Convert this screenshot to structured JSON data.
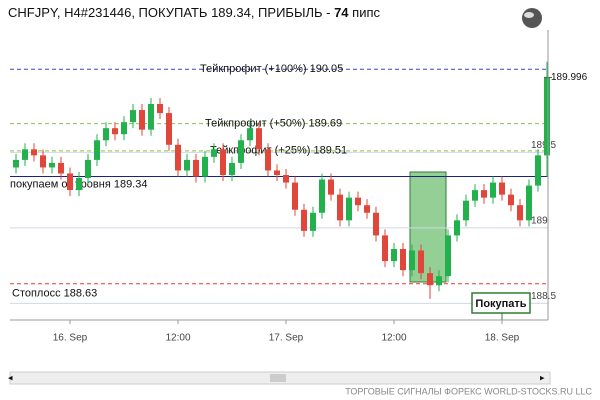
{
  "chart_data": {
    "type": "candlestick",
    "title": {
      "prefix": "CHFJPY, H4#231446, ПОКУПАТЬ 189.34, ПРИБЫЛЬ - ",
      "profit": 74,
      "unit": " пипс"
    },
    "categories": [
      null,
      null,
      null,
      null,
      null,
      null,
      "16. Sep",
      null,
      null,
      null,
      null,
      null,
      null,
      null,
      null,
      null,
      null,
      null,
      "12:00",
      null,
      null,
      null,
      null,
      null,
      null,
      null,
      null,
      null,
      null,
      null,
      "17. Sep",
      null,
      null,
      null,
      null,
      null,
      null,
      null,
      null,
      null,
      null,
      null,
      "12:00",
      null,
      null,
      null,
      null,
      null,
      null,
      null,
      null,
      null,
      null,
      null,
      "18. Sep",
      null,
      null,
      null,
      null,
      null
    ],
    "open": [
      189.4,
      189.45,
      189.52,
      189.48,
      189.4,
      189.43,
      189.36,
      189.25,
      189.33,
      189.45,
      189.58,
      189.66,
      189.62,
      189.7,
      189.78,
      189.65,
      189.82,
      189.76,
      189.55,
      189.38,
      189.45,
      189.34,
      189.47,
      189.52,
      189.35,
      189.43,
      189.58,
      189.66,
      189.52,
      189.38,
      189.35,
      189.3,
      189.12,
      188.98,
      189.1,
      189.32,
      189.22,
      189.05,
      189.2,
      189.15,
      189.1,
      188.95,
      188.78,
      188.86,
      188.72,
      188.85,
      188.7,
      188.62,
      188.68,
      188.95,
      189.05,
      189.18,
      189.25,
      189.2,
      189.3,
      189.22,
      189.15,
      189.05,
      189.28,
      189.48
    ],
    "close": [
      189.45,
      189.52,
      189.48,
      189.4,
      189.43,
      189.36,
      189.25,
      189.33,
      189.45,
      189.58,
      189.66,
      189.62,
      189.7,
      189.78,
      189.65,
      189.82,
      189.76,
      189.55,
      189.38,
      189.45,
      189.34,
      189.47,
      189.52,
      189.35,
      189.43,
      189.58,
      189.66,
      189.52,
      189.38,
      189.35,
      189.3,
      189.12,
      188.98,
      189.1,
      189.32,
      189.22,
      189.05,
      189.2,
      189.15,
      189.1,
      188.95,
      188.78,
      188.86,
      188.72,
      188.85,
      188.7,
      188.62,
      188.68,
      188.95,
      189.05,
      189.18,
      189.25,
      189.2,
      189.3,
      189.22,
      189.15,
      189.05,
      189.28,
      189.48,
      189.996
    ],
    "high": [
      189.49,
      189.56,
      189.56,
      189.52,
      189.47,
      189.47,
      189.4,
      189.37,
      189.49,
      189.62,
      189.7,
      189.7,
      189.74,
      189.82,
      189.82,
      189.86,
      189.86,
      189.8,
      189.59,
      189.49,
      189.49,
      189.51,
      189.56,
      189.56,
      189.47,
      189.62,
      189.7,
      189.7,
      189.56,
      189.42,
      189.39,
      189.34,
      189.16,
      189.14,
      189.36,
      189.36,
      189.26,
      189.24,
      189.24,
      189.19,
      189.14,
      188.99,
      188.9,
      188.9,
      188.89,
      188.89,
      188.74,
      188.72,
      188.99,
      189.09,
      189.22,
      189.29,
      189.29,
      189.34,
      189.34,
      189.26,
      189.19,
      189.32,
      189.52,
      190.1
    ],
    "low": [
      189.36,
      189.41,
      189.44,
      189.36,
      189.36,
      189.32,
      189.21,
      189.21,
      189.29,
      189.41,
      189.54,
      189.58,
      189.58,
      189.66,
      189.61,
      189.61,
      189.72,
      189.51,
      189.34,
      189.34,
      189.3,
      189.3,
      189.43,
      189.31,
      189.31,
      189.39,
      189.54,
      189.48,
      189.34,
      189.31,
      189.26,
      189.08,
      188.94,
      188.94,
      189.06,
      189.18,
      189.01,
      189.01,
      189.11,
      189.06,
      188.91,
      188.74,
      188.74,
      188.68,
      188.68,
      188.66,
      188.53,
      188.58,
      188.64,
      188.91,
      189.01,
      189.14,
      189.16,
      189.16,
      189.18,
      189.11,
      189.01,
      189.01,
      189.24,
      189.34
    ],
    "up_color": "#22b14c",
    "down_color": "#e0473a",
    "ylim": [
      188.39,
      190.31
    ],
    "yticks": [
      188.5,
      189,
      189.5
    ],
    "grid": true,
    "last_price": 189.996,
    "levels": [
      {
        "label": "Тейкпрофит (+100%) 190.05",
        "value": 190.05,
        "color": "#3344cc",
        "dashed": true
      },
      {
        "label": "Тейкпрофит (+50%) 189.69",
        "value": 189.69,
        "color": "#8bc34a",
        "dashed": true
      },
      {
        "label": "Тейкпрофит (+25%) 189.51",
        "value": 189.51,
        "color": "#8bc34a",
        "dashed": true
      },
      {
        "label": "покупаем от уровня 189.34",
        "value": 189.34,
        "color": "#1a237e",
        "dashed": false
      },
      {
        "label": "Стоплосс 188.63",
        "value": 188.63,
        "color": "#e53935",
        "dashed": true
      }
    ],
    "signal_label": "Покупать",
    "footer": "ТОРГОВЫЕ СИГНАЛЫ ФОРЕКС WORLD-STOCKS.RU LLC"
  }
}
